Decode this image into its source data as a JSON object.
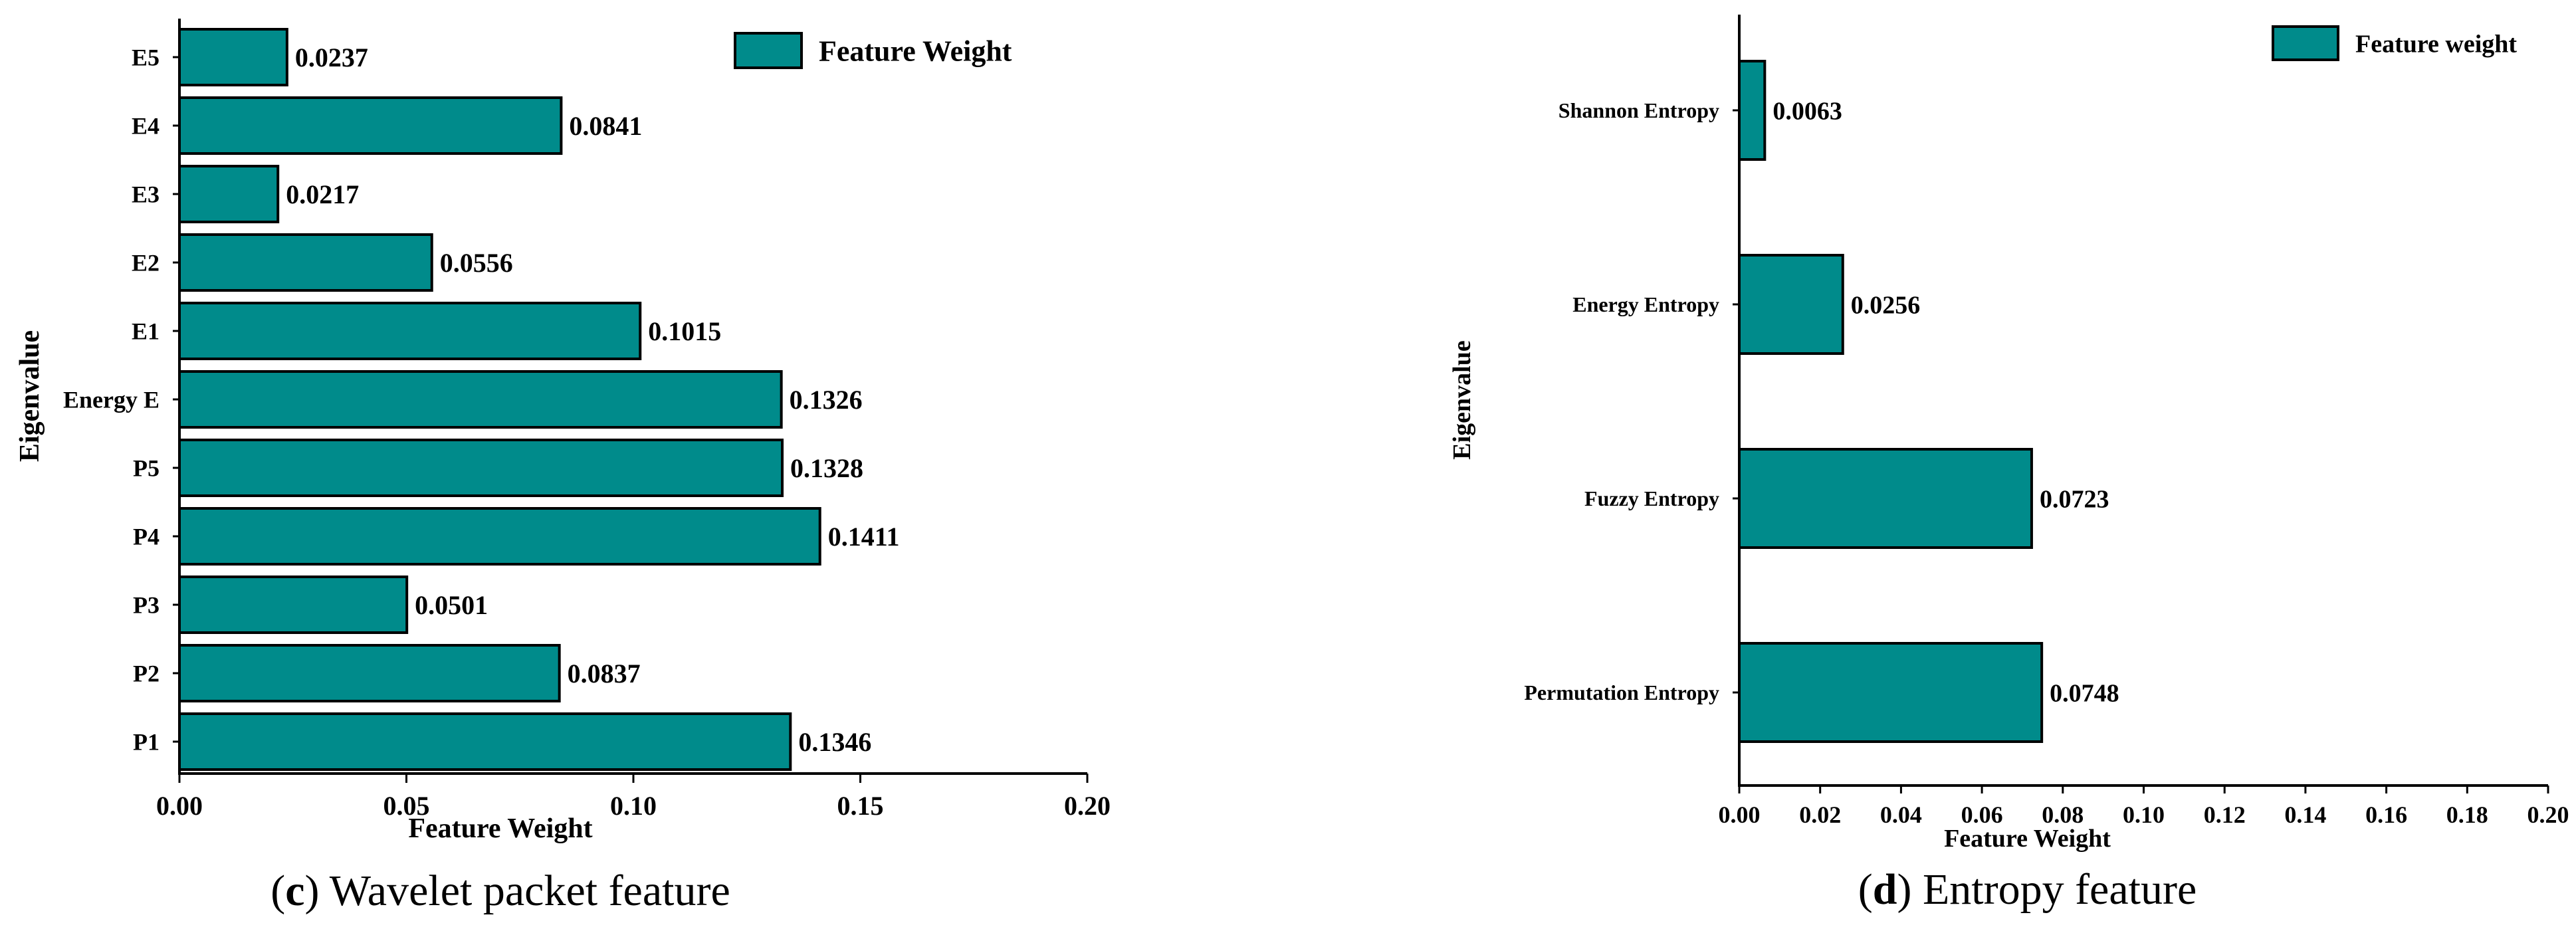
{
  "colors": {
    "bar": "#008B8B",
    "stroke": "#000000"
  },
  "chart_data": [
    {
      "type": "bar",
      "orientation": "horizontal",
      "caption_letter": "c",
      "caption_text": " Wavelet packet feature",
      "xlabel": "Feature Weight",
      "ylabel": "Eigenvalue",
      "xlim": [
        0.0,
        0.2
      ],
      "xticks": [
        "0.00",
        "0.05",
        "0.10",
        "0.15",
        "0.20"
      ],
      "xtick_values": [
        0.0,
        0.05,
        0.1,
        0.15,
        0.2
      ],
      "categories": [
        "E5",
        "E4",
        "E3",
        "E2",
        "E1",
        "Energy E",
        "P5",
        "P4",
        "P3",
        "P2",
        "P1"
      ],
      "values": [
        0.0237,
        0.0841,
        0.0217,
        0.0556,
        0.1015,
        0.1326,
        0.1328,
        0.1411,
        0.0501,
        0.0837,
        0.1346
      ],
      "value_labels": [
        "0.0237",
        "0.0841",
        "0.0217",
        "0.0556",
        "0.1015",
        "0.1326",
        "0.1328",
        "0.1411",
        "0.0501",
        "0.0837",
        "0.1346"
      ],
      "legend": {
        "label": "Feature Weight",
        "position": "top-right"
      },
      "grid": false
    },
    {
      "type": "bar",
      "orientation": "horizontal",
      "caption_letter": "d",
      "caption_text": " Entropy feature",
      "xlabel": "Feature Weight",
      "ylabel": "Eigenvalue",
      "xlim": [
        0.0,
        0.2
      ],
      "xticks": [
        "0.00",
        "0.02",
        "0.04",
        "0.06",
        "0.08",
        "0.10",
        "0.12",
        "0.14",
        "0.16",
        "0.18",
        "0.20"
      ],
      "xtick_values": [
        0.0,
        0.02,
        0.04,
        0.06,
        0.08,
        0.1,
        0.12,
        0.14,
        0.16,
        0.18,
        0.2
      ],
      "categories": [
        "Shannon Entropy",
        "Energy Entropy",
        "Fuzzy Entropy",
        "Permutation Entropy"
      ],
      "values": [
        0.0063,
        0.0256,
        0.0723,
        0.0748
      ],
      "value_labels": [
        "0.0063",
        "0.0256",
        "0.0723",
        "0.0748"
      ],
      "legend": {
        "label": "Feature weight",
        "position": "top-right"
      },
      "grid": false
    }
  ]
}
